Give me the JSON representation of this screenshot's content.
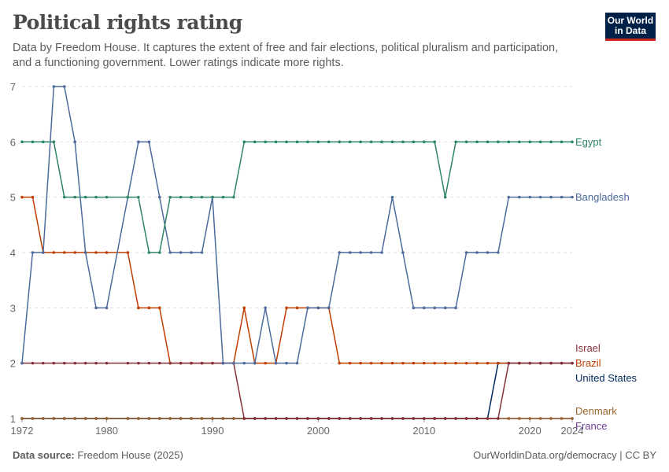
{
  "header": {
    "title": "Political rights rating",
    "subtitle": "Data by Freedom House. It captures the extent of free and fair elections, political pluralism and participation, and a functioning government. Lower ratings indicate more rights.",
    "logo": "Our World in Data"
  },
  "footer": {
    "source_label": "Data source:",
    "source": "Freedom House (2025)",
    "link": "OurWorldinData.org/democracy | CC BY"
  },
  "chart_data": {
    "type": "line",
    "title": "Political rights rating",
    "x_start": 1972,
    "x_end": 2024,
    "xticks": [
      1972,
      1980,
      1990,
      2000,
      2010,
      2020,
      2024
    ],
    "yticks": [
      1,
      2,
      3,
      4,
      5,
      6,
      7
    ],
    "ylim": [
      1,
      7
    ],
    "grid": "horizontal-dashed",
    "legend": "right-end-labels",
    "series": [
      {
        "name": "France",
        "color": "#6d3e91",
        "values": [
          1,
          1,
          1,
          1,
          1,
          1,
          1,
          1,
          1,
          null,
          1,
          1,
          1,
          1,
          1,
          1,
          1,
          1,
          1,
          1,
          1,
          1,
          1,
          1,
          1,
          1,
          1,
          1,
          1,
          1,
          1,
          1,
          1,
          1,
          1,
          1,
          1,
          1,
          1,
          1,
          1,
          1,
          1,
          1,
          1,
          1,
          1,
          1,
          1,
          1,
          1,
          1,
          1
        ]
      },
      {
        "name": "United States",
        "color": "#00295b",
        "values": [
          1,
          1,
          1,
          1,
          1,
          1,
          1,
          1,
          1,
          null,
          1,
          1,
          1,
          1,
          1,
          1,
          1,
          1,
          1,
          1,
          1,
          1,
          1,
          1,
          1,
          1,
          1,
          1,
          1,
          1,
          1,
          1,
          1,
          1,
          1,
          1,
          1,
          1,
          1,
          1,
          1,
          1,
          1,
          1,
          1,
          2,
          2,
          2,
          2,
          2,
          2,
          2,
          2
        ]
      },
      {
        "name": "Denmark",
        "color": "#9a652e",
        "values": [
          1,
          1,
          1,
          1,
          1,
          1,
          1,
          1,
          1,
          null,
          1,
          1,
          1,
          1,
          1,
          1,
          1,
          1,
          1,
          1,
          1,
          1,
          1,
          1,
          1,
          1,
          1,
          1,
          1,
          1,
          1,
          1,
          1,
          1,
          1,
          1,
          1,
          1,
          1,
          1,
          1,
          1,
          1,
          1,
          1,
          1,
          1,
          1,
          1,
          1,
          1,
          1,
          1
        ]
      },
      {
        "name": "Brazil",
        "color": "#be3e00",
        "values": [
          5,
          5,
          4,
          4,
          4,
          4,
          4,
          4,
          4,
          null,
          4,
          3,
          3,
          3,
          2,
          2,
          2,
          2,
          2,
          2,
          2,
          3,
          2,
          2,
          2,
          3,
          3,
          3,
          3,
          3,
          2,
          2,
          2,
          2,
          2,
          2,
          2,
          2,
          2,
          2,
          2,
          2,
          2,
          2,
          2,
          2,
          2,
          2,
          2,
          2,
          2,
          2,
          2
        ]
      },
      {
        "name": "Israel",
        "color": "#883039",
        "values": [
          2,
          2,
          2,
          2,
          2,
          2,
          2,
          2,
          2,
          null,
          2,
          2,
          2,
          2,
          2,
          2,
          2,
          2,
          2,
          2,
          2,
          1,
          1,
          1,
          1,
          1,
          1,
          1,
          1,
          1,
          1,
          1,
          1,
          1,
          1,
          1,
          1,
          1,
          1,
          1,
          1,
          1,
          1,
          1,
          1,
          1,
          2,
          2,
          2,
          2,
          2,
          2,
          2
        ]
      },
      {
        "name": "Bangladesh",
        "color": "#4c6a9c",
        "values": [
          2,
          4,
          4,
          7,
          7,
          6,
          4,
          3,
          3,
          null,
          5,
          6,
          6,
          5,
          4,
          4,
          4,
          4,
          5,
          2,
          2,
          2,
          2,
          3,
          2,
          2,
          2,
          3,
          3,
          3,
          4,
          4,
          4,
          4,
          4,
          5,
          4,
          3,
          3,
          3,
          3,
          3,
          4,
          4,
          4,
          4,
          5,
          5,
          5,
          5,
          5,
          5,
          5
        ]
      },
      {
        "name": "Egypt",
        "color": "#2c8465",
        "values": [
          6,
          6,
          6,
          6,
          5,
          5,
          5,
          5,
          5,
          null,
          5,
          5,
          4,
          4,
          5,
          5,
          5,
          5,
          5,
          5,
          5,
          6,
          6,
          6,
          6,
          6,
          6,
          6,
          6,
          6,
          6,
          6,
          6,
          6,
          6,
          6,
          6,
          6,
          6,
          6,
          5,
          6,
          6,
          6,
          6,
          6,
          6,
          6,
          6,
          6,
          6,
          6,
          6
        ]
      }
    ]
  }
}
